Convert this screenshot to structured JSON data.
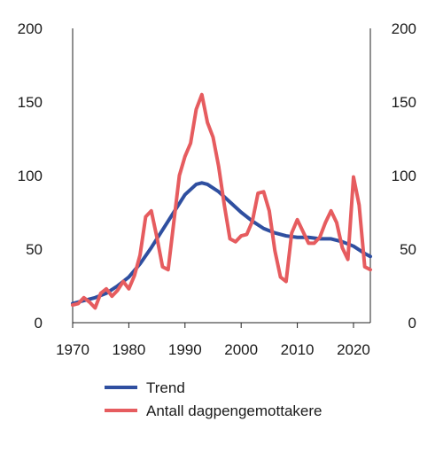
{
  "chart_data": {
    "type": "line",
    "title": "",
    "xlabel": "",
    "ylabel": "",
    "xlim": [
      1970,
      2023
    ],
    "ylim": [
      0,
      200
    ],
    "grid": false,
    "legend_placement": "bottom-center",
    "x_ticks": [
      1970,
      1980,
      1990,
      2000,
      2010,
      2020
    ],
    "y_ticks": [
      0,
      50,
      100,
      150,
      200
    ],
    "secondary_y_axis": true,
    "series": [
      {
        "name": "Trend",
        "color": "#2f4fa0",
        "x": [
          1970,
          1972,
          1974,
          1976,
          1978,
          1980,
          1982,
          1984,
          1986,
          1988,
          1990,
          1992,
          1993,
          1994,
          1996,
          1998,
          2000,
          2002,
          2004,
          2006,
          2008,
          2010,
          2012,
          2014,
          2016,
          2018,
          2020,
          2022,
          2023
        ],
        "y": [
          13,
          15,
          17,
          20,
          25,
          31,
          40,
          51,
          63,
          75,
          87,
          94,
          95,
          94,
          89,
          82,
          75,
          69,
          64,
          61,
          59,
          58,
          58,
          57,
          57,
          55,
          52,
          47,
          45
        ]
      },
      {
        "name": "Antall dagpengemottakere",
        "color": "#e65c5f",
        "x": [
          1970,
          1971,
          1972,
          1973,
          1974,
          1975,
          1976,
          1977,
          1978,
          1979,
          1980,
          1981,
          1982,
          1983,
          1984,
          1985,
          1986,
          1987,
          1988,
          1989,
          1990,
          1991,
          1992,
          1993,
          1994,
          1995,
          1996,
          1997,
          1998,
          1999,
          2000,
          2001,
          2002,
          2003,
          2004,
          2005,
          2006,
          2007,
          2008,
          2009,
          2010,
          2011,
          2012,
          2013,
          2014,
          2015,
          2016,
          2017,
          2018,
          2019,
          2020,
          2021,
          2022,
          2023
        ],
        "y": [
          12,
          13,
          17,
          14,
          10,
          20,
          23,
          18,
          22,
          28,
          23,
          32,
          46,
          72,
          76,
          58,
          38,
          36,
          68,
          100,
          113,
          122,
          145,
          155,
          136,
          126,
          106,
          80,
          57,
          55,
          59,
          60,
          69,
          88,
          89,
          76,
          49,
          31,
          28,
          61,
          70,
          62,
          54,
          54,
          58,
          68,
          76,
          68,
          51,
          43,
          99,
          80,
          38,
          36
        ]
      }
    ]
  }
}
